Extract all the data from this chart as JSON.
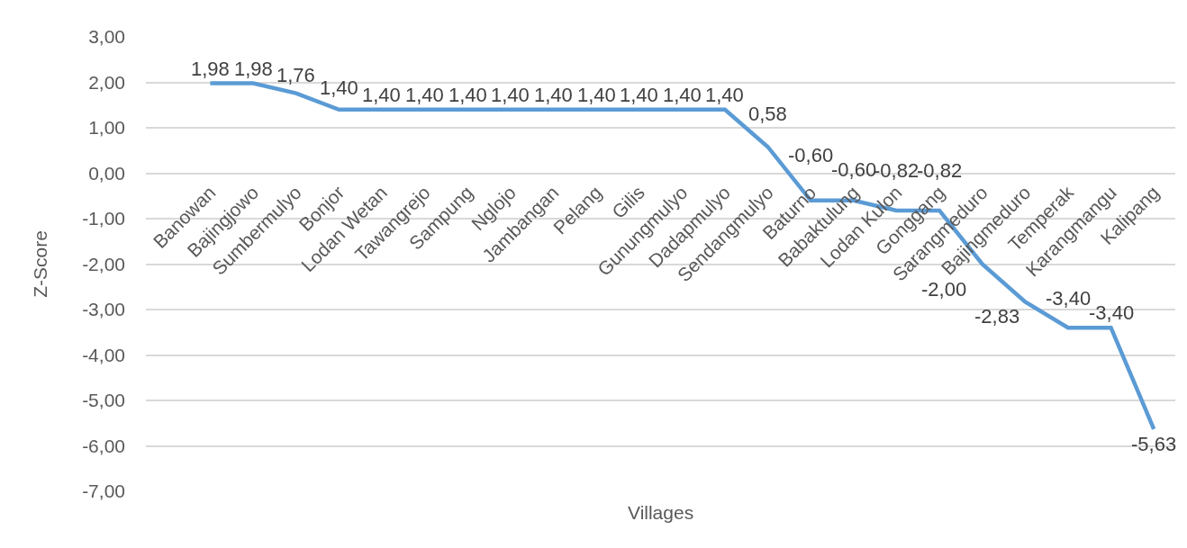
{
  "chart_data": {
    "type": "line",
    "xlabel": "Villages",
    "ylabel": "Z-Score",
    "categories": [
      null,
      "Banowan",
      "Bajingjowo",
      "Sumbermulyo",
      "Bonjor",
      "Lodan Wetan",
      "Tawangrejo",
      "Sampung",
      "Nglojo",
      "Jambangan",
      "Pelang",
      "Gilis",
      "Gunungmulyo",
      "Dadapmulyo",
      "Sendangmulyo",
      "Baturno",
      "Babaktulung",
      "Lodan Kulon",
      "Gonggang",
      "Sarangmeduro",
      "Bajingmeduro",
      "Temperak",
      "Karangmangu",
      "Kalipang"
    ],
    "series": [
      {
        "color": "#5b9bd5",
        "values": [
          null,
          1.98,
          1.98,
          1.76,
          1.4,
          1.4,
          1.4,
          1.4,
          1.4,
          1.4,
          1.4,
          1.4,
          1.4,
          1.4,
          0.58,
          -0.6,
          -0.6,
          -0.82,
          -0.82,
          -2.0,
          -2.83,
          -3.4,
          -3.4,
          -5.63
        ],
        "value_labels": [
          null,
          "1,98",
          "1,98",
          "1,76",
          "1,40",
          "1,40",
          "1,40",
          "1,40",
          "1,40",
          "1,40",
          "1,40",
          "1,40",
          "1,40",
          "1,40",
          "0,58",
          "-0,60",
          "-0,60",
          "-0,82",
          "-0,82",
          "-2,00",
          "-2,83",
          "-3,40",
          "-3,40",
          "-5,63"
        ]
      }
    ],
    "ylim": [
      -7,
      3
    ],
    "yticks": [
      {
        "value": 3,
        "label": "3,00"
      },
      {
        "value": 2,
        "label": "2,00"
      },
      {
        "value": 1,
        "label": "1,00"
      },
      {
        "value": 0,
        "label": "0,00"
      },
      {
        "value": -1,
        "label": "-1,00"
      },
      {
        "value": -2,
        "label": "-2,00"
      },
      {
        "value": -3,
        "label": "-3,00"
      },
      {
        "value": -4,
        "label": "-4,00"
      },
      {
        "value": -5,
        "label": "-5,00"
      },
      {
        "value": -6,
        "label": "-6,00"
      },
      {
        "value": -7,
        "label": "-7,00"
      }
    ],
    "grid": "y"
  }
}
